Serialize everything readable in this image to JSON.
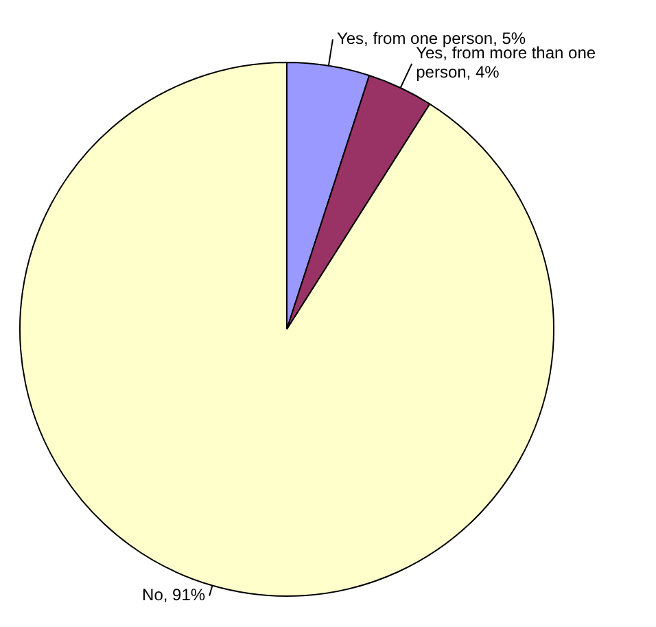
{
  "chart_data": {
    "type": "pie",
    "categories": [
      "Yes, from one person",
      "Yes, from more than one person",
      "No"
    ],
    "values": [
      5,
      4,
      91
    ],
    "value_labels": [
      "5%",
      "4%",
      "91%"
    ],
    "colors": [
      "#9999ff",
      "#993366",
      "#ffffcc"
    ],
    "legend": false
  }
}
